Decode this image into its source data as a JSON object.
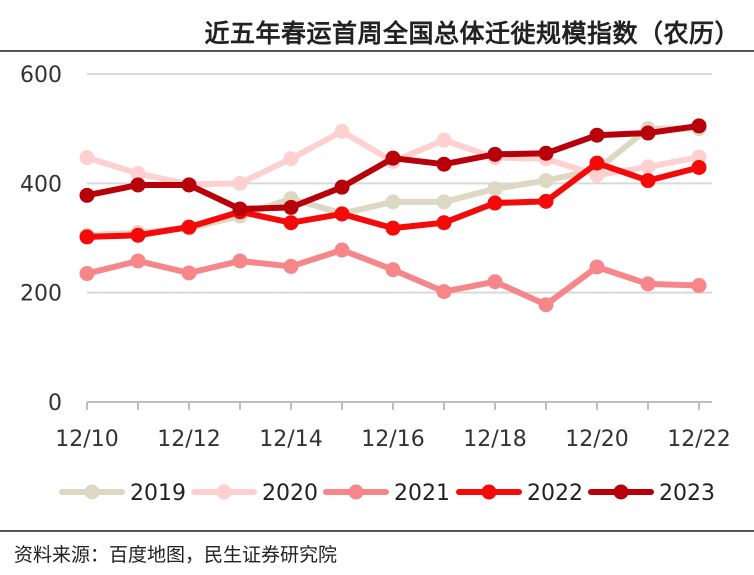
{
  "title": "近五年春运首周全国总体迁徙规模指数（农历）",
  "source": "资料来源：百度地图，民生证券研究院",
  "chart_data": {
    "type": "line",
    "title": "近五年春运首周全国总体迁徙规模指数（农历）",
    "xlabel": "",
    "ylabel": "",
    "categories": [
      "12/10",
      "12/11",
      "12/12",
      "12/13",
      "12/14",
      "12/15",
      "12/16",
      "12/17",
      "12/18",
      "12/19",
      "12/20",
      "12/21",
      "12/22"
    ],
    "x_tick_labels": [
      "12/10",
      "12/12",
      "12/14",
      "12/16",
      "12/18",
      "12/20",
      "12/22"
    ],
    "y_tick_labels": [
      "0",
      "200",
      "400",
      "600"
    ],
    "ylim": [
      0,
      600
    ],
    "y_ticks": [
      0,
      200,
      400,
      600
    ],
    "grid": "horizontal",
    "legend_position": "bottom",
    "series": [
      {
        "name": "2019",
        "color": "#dcd8c4",
        "values": [
          305,
          310,
          318,
          340,
          372,
          345,
          366,
          366,
          390,
          405,
          425,
          500,
          500
        ]
      },
      {
        "name": "2020",
        "color": "#ffd0d0",
        "values": [
          447,
          418,
          398,
          400,
          445,
          495,
          440,
          479,
          447,
          445,
          415,
          430,
          448
        ]
      },
      {
        "name": "2021",
        "color": "#f7868a",
        "values": [
          235,
          258,
          236,
          258,
          248,
          278,
          242,
          202,
          220,
          178,
          247,
          216,
          213
        ]
      },
      {
        "name": "2022",
        "color": "#f50a0a",
        "values": [
          302,
          305,
          320,
          348,
          328,
          344,
          318,
          328,
          364,
          367,
          437,
          405,
          429
        ]
      },
      {
        "name": "2023",
        "color": "#b8000a",
        "values": [
          378,
          397,
          397,
          353,
          356,
          393,
          446,
          435,
          453,
          455,
          488,
          492,
          505
        ]
      }
    ]
  }
}
